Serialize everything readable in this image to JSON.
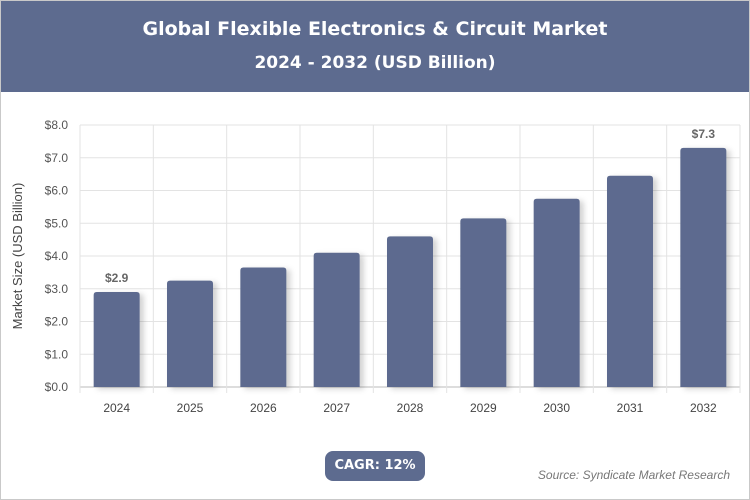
{
  "header": {
    "title": "Global Flexible Electronics & Circuit Market",
    "subtitle": "2024 - 2032 (USD Billion)"
  },
  "chart_data": {
    "type": "bar",
    "categories": [
      "2024",
      "2025",
      "2026",
      "2027",
      "2028",
      "2029",
      "2030",
      "2031",
      "2032"
    ],
    "values": [
      2.9,
      3.25,
      3.65,
      4.1,
      4.6,
      5.15,
      5.75,
      6.45,
      7.3
    ],
    "data_labels": {
      "2024": "$2.9",
      "2032": "$7.3"
    },
    "ylabel": "Market Size (USD Billion)",
    "xlabel": "",
    "ylim": [
      0,
      8
    ],
    "yticks": [
      "$0.0",
      "$1.0",
      "$2.0",
      "$3.0",
      "$4.0",
      "$5.0",
      "$6.0",
      "$7.0",
      "$8.0"
    ],
    "grid": true,
    "bar_color": "#5d6b8f"
  },
  "footer": {
    "cagr": "CAGR: 12%",
    "source": "Source: Syndicate Market Research"
  }
}
